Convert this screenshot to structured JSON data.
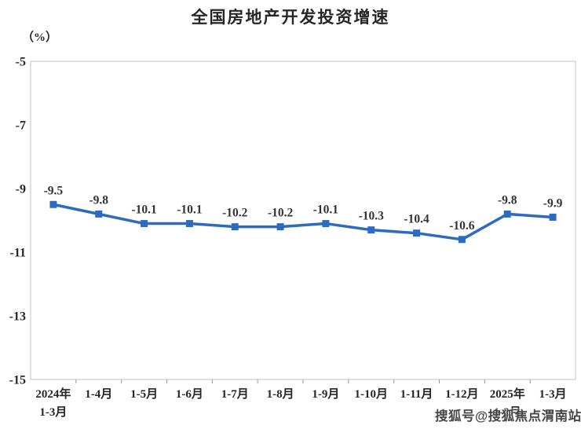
{
  "chart_data": {
    "type": "line",
    "title": "全国房地产开发投资增速",
    "unit_label": "（%）",
    "categories": [
      [
        "2024年",
        "1-3月"
      ],
      [
        "1-4月"
      ],
      [
        "1-5月"
      ],
      [
        "1-6月"
      ],
      [
        "1-7月"
      ],
      [
        "1-8月"
      ],
      [
        "1-9月"
      ],
      [
        "1-10月"
      ],
      [
        "1-11月"
      ],
      [
        "1-12月"
      ],
      [
        "2025年",
        "1-2月"
      ],
      [
        "1-3月"
      ]
    ],
    "values": [
      -9.5,
      -9.8,
      -10.1,
      -10.1,
      -10.2,
      -10.2,
      -10.1,
      -10.3,
      -10.4,
      -10.6,
      -9.8,
      -9.9
    ],
    "data_labels": [
      "-9.5",
      "-9.8",
      "-10.1",
      "-10.1",
      "-10.2",
      "-10.2",
      "-10.1",
      "-10.3",
      "-10.4",
      "-10.6",
      "-9.8",
      "-9.9"
    ],
    "xlabel": "",
    "ylabel": "（%）",
    "ylim": [
      -15,
      -5
    ],
    "y_ticks": [
      -5,
      -7,
      -9,
      -11,
      -13,
      -15
    ],
    "grid": false,
    "legend": "none",
    "line_color": "#2e6bbf",
    "marker": "square",
    "label_color": "#333333",
    "axis_text_color": "#262626",
    "border_color": "#c0c0c0",
    "tick_color": "#999999"
  },
  "watermark": {
    "text": "搜狐号@搜狐焦点渭南站"
  }
}
